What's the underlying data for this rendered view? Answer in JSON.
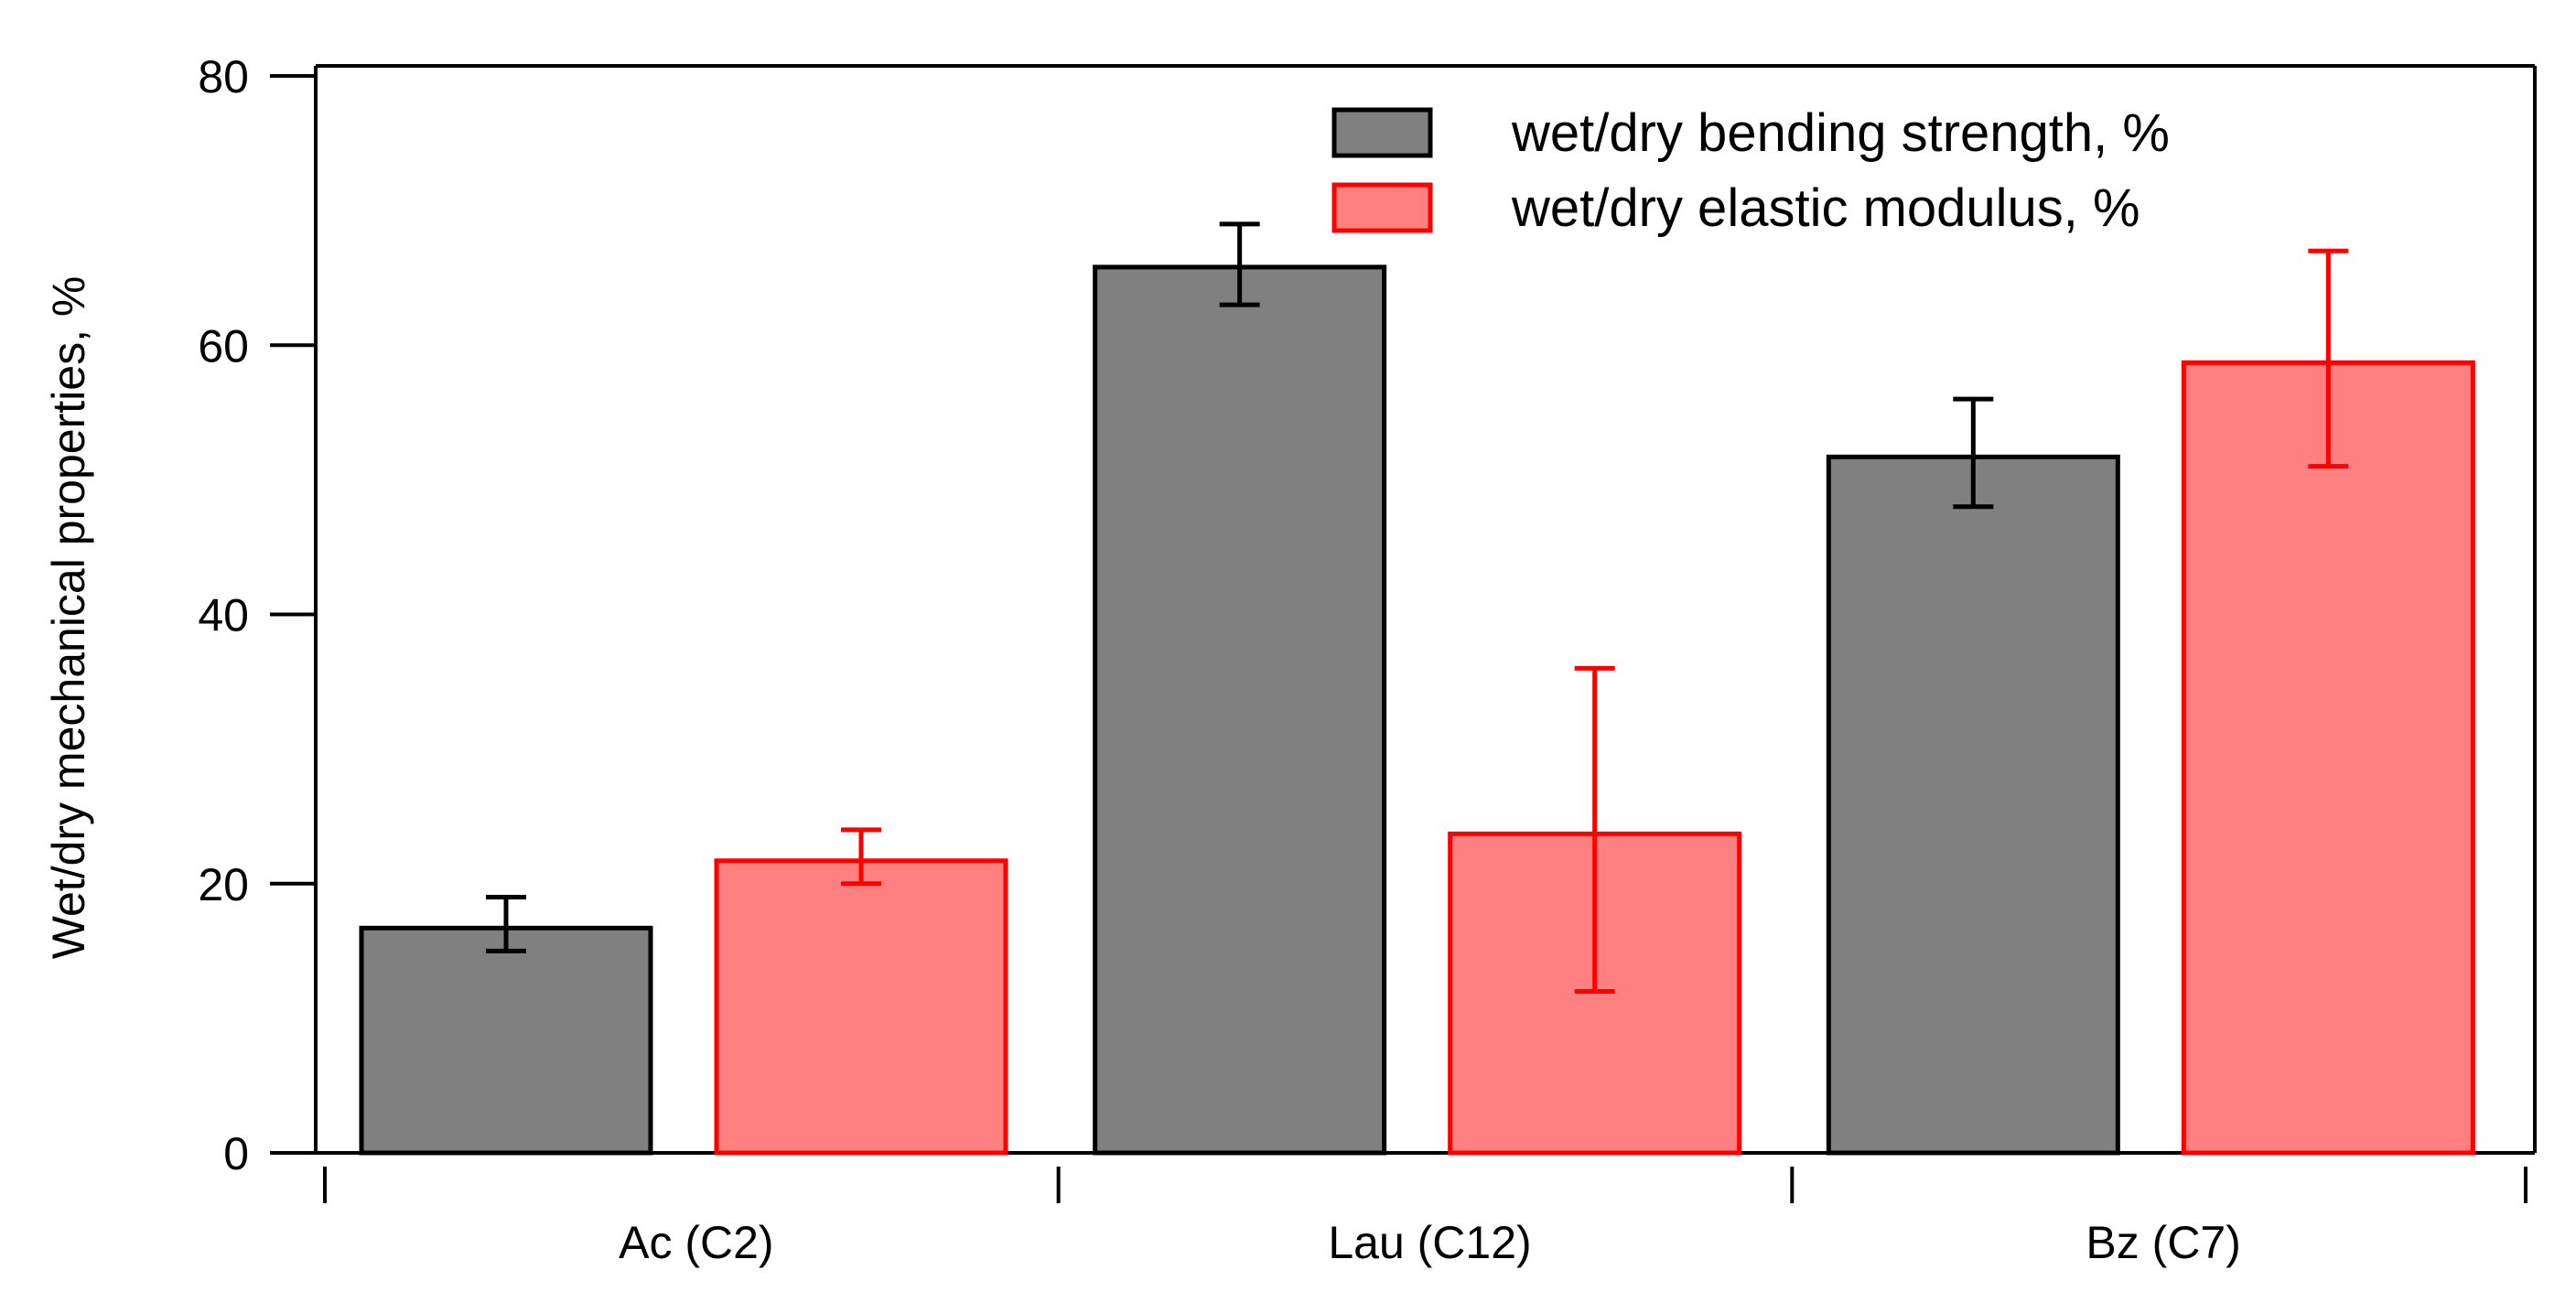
{
  "chart_data": {
    "type": "bar",
    "categories": [
      "Ac (C2)",
      "Lau (C12)",
      "Bz (C7)"
    ],
    "series": [
      {
        "name": "wet/dry bending strength, %",
        "values": [
          16.7,
          65.8,
          51.7
        ],
        "error_low": [
          15.0,
          63.0,
          48.0
        ],
        "error_high": [
          19.0,
          69.0,
          56.0
        ],
        "fill": "#808080",
        "stroke": "#000000"
      },
      {
        "name": "wet/dry elastic modulus, %",
        "values": [
          21.7,
          23.7,
          58.7
        ],
        "error_low": [
          20.0,
          12.0,
          51.0
        ],
        "error_high": [
          24.0,
          36.0,
          67.0
        ],
        "fill": "#ff8080",
        "stroke": "#ff0000"
      }
    ],
    "ylabel": "Wet/dry mechanical properties, %",
    "xlabel": "",
    "ylim": [
      0,
      80
    ],
    "yticks": [
      0,
      20,
      40,
      60,
      80
    ],
    "grid": false,
    "legend_position": "top-right"
  }
}
